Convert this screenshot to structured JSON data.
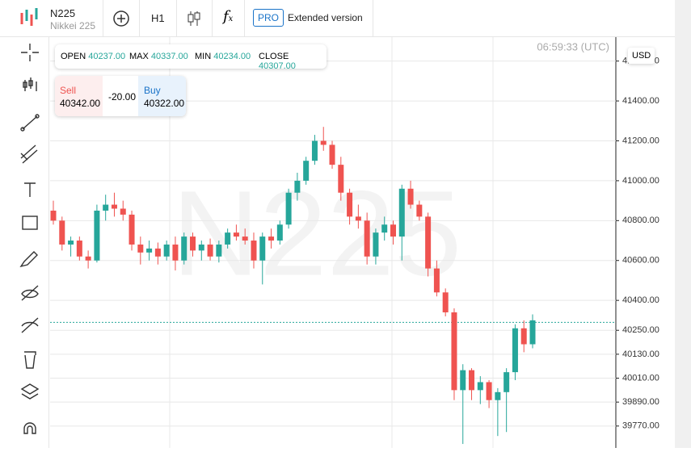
{
  "header": {
    "symbol": "N225",
    "name": "Nikkei 225",
    "timeframe": "H1",
    "pro": "PRO",
    "extended": "Extended version"
  },
  "ohlc": {
    "open_label": "OPEN",
    "open": "40237.00",
    "max_label": "MAX",
    "max": "40337.00",
    "min_label": "MIN",
    "min": "40234.00",
    "close_label": "CLOSE",
    "close": "40307.00"
  },
  "trade": {
    "sell_label": "Sell",
    "sell": "40342.00",
    "spread": "-20.00",
    "buy_label": "Buy",
    "buy": "40322.00"
  },
  "clock": "06:59:33 (UTC)",
  "currency": "USD",
  "watermark": "N225",
  "chart_data": {
    "type": "candlestick",
    "up_color": "#26a69a",
    "down_color": "#ef5350",
    "grid": true,
    "ylim": [
      39660,
      41720
    ],
    "yticks": [
      {
        "value": 41600,
        "label": "41600.00"
      },
      {
        "value": 41400,
        "label": "41400.00"
      },
      {
        "value": 41200,
        "label": "41200.00"
      },
      {
        "value": 41000,
        "label": "41000.00"
      },
      {
        "value": 40800,
        "label": "40800.00"
      },
      {
        "value": 40600,
        "label": "40600.00"
      },
      {
        "value": 40400,
        "label": "40400.00"
      },
      {
        "value": 40250,
        "label": "40250.00"
      },
      {
        "value": 40130,
        "label": "40130.00"
      },
      {
        "value": 40010,
        "label": "40010.00"
      },
      {
        "value": 39890,
        "label": "39890.00"
      },
      {
        "value": 39770,
        "label": "39770.00"
      }
    ],
    "price_line": 40290,
    "open": [
      40850,
      40800,
      40680,
      40700,
      40620,
      40600,
      40850,
      40880,
      40860,
      40830,
      40680,
      40640,
      40660,
      40620,
      40680,
      40600,
      40720,
      40650,
      40680,
      40620,
      40680,
      40740,
      40720,
      40700,
      40600,
      40720,
      40700,
      40780,
      40940,
      41000,
      41100,
      41200,
      41180,
      41080,
      40940,
      40820,
      40800,
      40620,
      40740,
      40780,
      40720,
      40960,
      40880,
      40820,
      40560,
      40440,
      40340,
      39950,
      40050,
      39950,
      39990,
      39900,
      39940,
      40040,
      40260,
      40180
    ],
    "high": [
      40900,
      40820,
      40720,
      40720,
      40650,
      40880,
      40930,
      40940,
      40900,
      40850,
      40720,
      40700,
      40690,
      40700,
      40720,
      40740,
      40740,
      40700,
      40710,
      40700,
      40760,
      40780,
      40760,
      40740,
      40740,
      40760,
      40800,
      40960,
      41040,
      41120,
      41230,
      41270,
      41200,
      41120,
      40960,
      40880,
      40840,
      40760,
      40820,
      40800,
      40980,
      41000,
      40900,
      40840,
      40600,
      40460,
      40360,
      40080,
      40060,
      40020,
      40000,
      39960,
      40060,
      40280,
      40300,
      40330
    ],
    "low": [
      40780,
      40650,
      40620,
      40600,
      40560,
      40590,
      40800,
      40820,
      40800,
      40650,
      40580,
      40600,
      40580,
      40600,
      40550,
      40580,
      40620,
      40600,
      40600,
      40590,
      40660,
      40700,
      40680,
      40560,
      40480,
      40660,
      40680,
      40760,
      40900,
      40980,
      41080,
      41150,
      41060,
      40900,
      40780,
      40760,
      40580,
      40580,
      40700,
      40680,
      40600,
      40860,
      40800,
      40520,
      40420,
      40320,
      39900,
      39680,
      39900,
      39880,
      39860,
      39720,
      39740,
      40000,
      40140,
      40160
    ],
    "close": [
      40800,
      40680,
      40700,
      40620,
      40600,
      40850,
      40880,
      40860,
      40830,
      40680,
      40640,
      40660,
      40620,
      40680,
      40600,
      40720,
      40650,
      40680,
      40620,
      40680,
      40740,
      40720,
      40700,
      40600,
      40720,
      40700,
      40780,
      40940,
      41000,
      41100,
      41200,
      41180,
      41080,
      40940,
      40820,
      40800,
      40620,
      40740,
      40780,
      40720,
      40960,
      40880,
      40820,
      40560,
      40440,
      40340,
      39950,
      40050,
      39950,
      39990,
      39900,
      39940,
      40040,
      40260,
      40180,
      40300
    ]
  }
}
